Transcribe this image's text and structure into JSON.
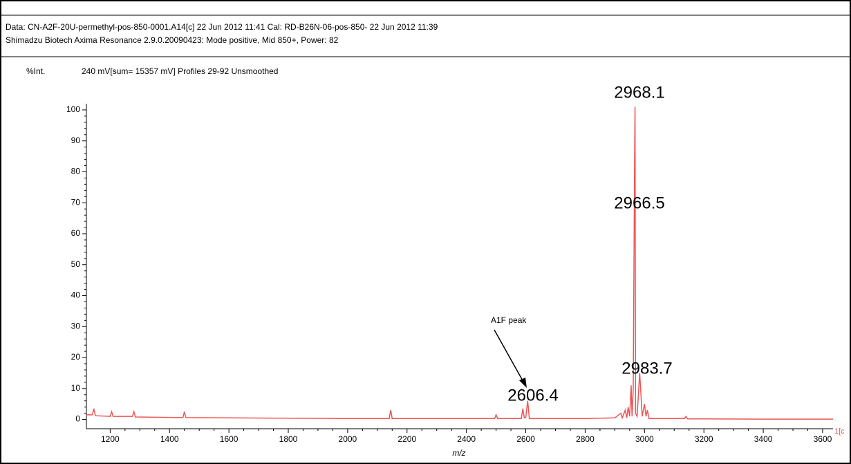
{
  "chart_data": {
    "type": "line",
    "header": [
      "Data: CN-A2F-20U-permethyl-pos-850-0001.A14[c] 22 Jun 2012 11:41 Cal: RD-B26N-06-pos-850- 22 Jun 2012 11:39",
      "Shimadzu Biotech Axima Resonance 2.9.0.20090423: Mode positive, Mid 850+, Power: 82"
    ],
    "ylabel": "%Int.",
    "subtitle": "240 mV[sum= 15357 mV]  Profiles 29-92 Unsmoothed",
    "xlabel": "m/z",
    "corner_label": "1[c",
    "annotation": "A1F peak",
    "peak_labels": [
      2968.1,
      2966.5,
      2983.7,
      2606.4
    ],
    "color": "#ee5555",
    "x": [
      1120,
      1140,
      1145,
      1150,
      1200,
      1205,
      1210,
      1275,
      1280,
      1285,
      1445,
      1450,
      1455,
      1600,
      1800,
      2000,
      2140,
      2145,
      2150,
      2400,
      2495,
      2500,
      2505,
      2585,
      2590,
      2595,
      2600,
      2606.4,
      2612,
      2800,
      2900,
      2920,
      2925,
      2935,
      2940,
      2945,
      2950,
      2955,
      2958,
      2962,
      2966.5,
      2968.1,
      2970,
      2975,
      2983.7,
      2988,
      2992,
      3000,
      3005,
      3010,
      3015,
      3135,
      3140,
      3145,
      3400,
      3635
    ],
    "values": [
      1.5,
      1.5,
      3.5,
      1.2,
      1,
      2.5,
      1,
      1,
      2.5,
      0.8,
      0.6,
      2.5,
      0.6,
      0.5,
      0.4,
      0.3,
      0.3,
      3,
      0.3,
      0.3,
      0.3,
      1.5,
      0.3,
      0.3,
      3.5,
      0.5,
      0.5,
      6,
      0.3,
      0.3,
      0.5,
      2,
      0.5,
      3,
      0.5,
      4,
      1,
      11,
      1,
      10,
      83,
      101,
      2,
      1,
      15,
      8,
      1,
      5,
      1,
      3,
      0.3,
      0.3,
      1,
      0.2,
      0.1,
      0.1
    ],
    "xlim": [
      1120,
      3635
    ],
    "ylim": [
      -3,
      102
    ],
    "xticks": [
      1200,
      1400,
      1600,
      1800,
      2000,
      2200,
      2400,
      2600,
      2800,
      3000,
      3200,
      3400,
      3600
    ],
    "yticks": [
      0,
      10,
      20,
      30,
      40,
      50,
      60,
      70,
      80,
      90,
      100
    ]
  }
}
